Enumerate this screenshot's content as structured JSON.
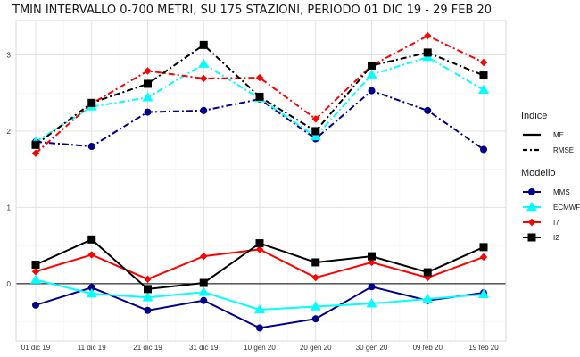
{
  "chart_data": {
    "type": "line",
    "title": "TMIN INTERVALLO 0-700 METRI, SU 175 STAZIONI, PERIODO 01 DIC 19  -  29 FEB 20",
    "xlabel": "",
    "ylabel": "",
    "categories": [
      "01 dic 19",
      "11 dic 19",
      "21 dic 19",
      "31 dic 19",
      "10 gen 20",
      "20 gen 20",
      "30 gen 20",
      "09 feb 20",
      "19 feb 20"
    ],
    "ylim": [
      -0.75,
      3.45
    ],
    "yticks": [
      0,
      1,
      2,
      3
    ],
    "grid": true,
    "legend_position": "right",
    "legends": [
      {
        "title": "Indice",
        "entries": [
          {
            "label": "ME",
            "linestyle": "solid"
          },
          {
            "label": "RMSE",
            "linestyle": "dotdash"
          }
        ]
      },
      {
        "title": "Modello",
        "entries": [
          {
            "label": "MMS",
            "color": "#00008b",
            "marker": "circle"
          },
          {
            "label": "ECMWF",
            "color": "#00ffff",
            "marker": "triangle"
          },
          {
            "label": "I7",
            "color": "#ff0000",
            "marker": "diamond"
          },
          {
            "label": "I2",
            "color": "#000000",
            "marker": "square"
          }
        ]
      }
    ],
    "series": [
      {
        "model": "MMS",
        "index": "RMSE",
        "color": "#00008b",
        "marker": "circle",
        "values": [
          1.86,
          1.8,
          2.25,
          2.27,
          2.42,
          1.9,
          2.53,
          2.27,
          1.76
        ]
      },
      {
        "model": "ECMWF",
        "index": "RMSE",
        "color": "#00ffff",
        "marker": "triangle",
        "values": [
          1.86,
          2.32,
          2.44,
          2.88,
          2.43,
          1.93,
          2.74,
          2.97,
          2.54
        ]
      },
      {
        "model": "I7",
        "index": "RMSE",
        "color": "#ff0000",
        "marker": "diamond",
        "values": [
          1.71,
          2.36,
          2.79,
          2.69,
          2.7,
          2.16,
          2.86,
          3.25,
          2.9
        ]
      },
      {
        "model": "I2",
        "index": "RMSE",
        "color": "#000000",
        "marker": "square",
        "values": [
          1.82,
          2.37,
          2.62,
          3.13,
          2.45,
          2.0,
          2.86,
          3.03,
          2.73
        ]
      },
      {
        "model": "MMS",
        "index": "ME",
        "color": "#00008b",
        "marker": "circle",
        "values": [
          -0.28,
          -0.05,
          -0.35,
          -0.22,
          -0.58,
          -0.46,
          -0.04,
          -0.22,
          -0.12
        ]
      },
      {
        "model": "ECMWF",
        "index": "ME",
        "color": "#00ffff",
        "marker": "triangle",
        "values": [
          0.05,
          -0.13,
          -0.18,
          -0.11,
          -0.34,
          -0.3,
          -0.26,
          -0.2,
          -0.14
        ]
      },
      {
        "model": "I7",
        "index": "ME",
        "color": "#ff0000",
        "marker": "diamond",
        "values": [
          0.16,
          0.38,
          0.06,
          0.36,
          0.45,
          0.08,
          0.28,
          0.08,
          0.35
        ]
      },
      {
        "model": "I2",
        "index": "ME",
        "color": "#000000",
        "marker": "square",
        "values": [
          0.25,
          0.58,
          -0.07,
          0.01,
          0.53,
          0.28,
          0.36,
          0.15,
          0.48
        ]
      }
    ]
  }
}
